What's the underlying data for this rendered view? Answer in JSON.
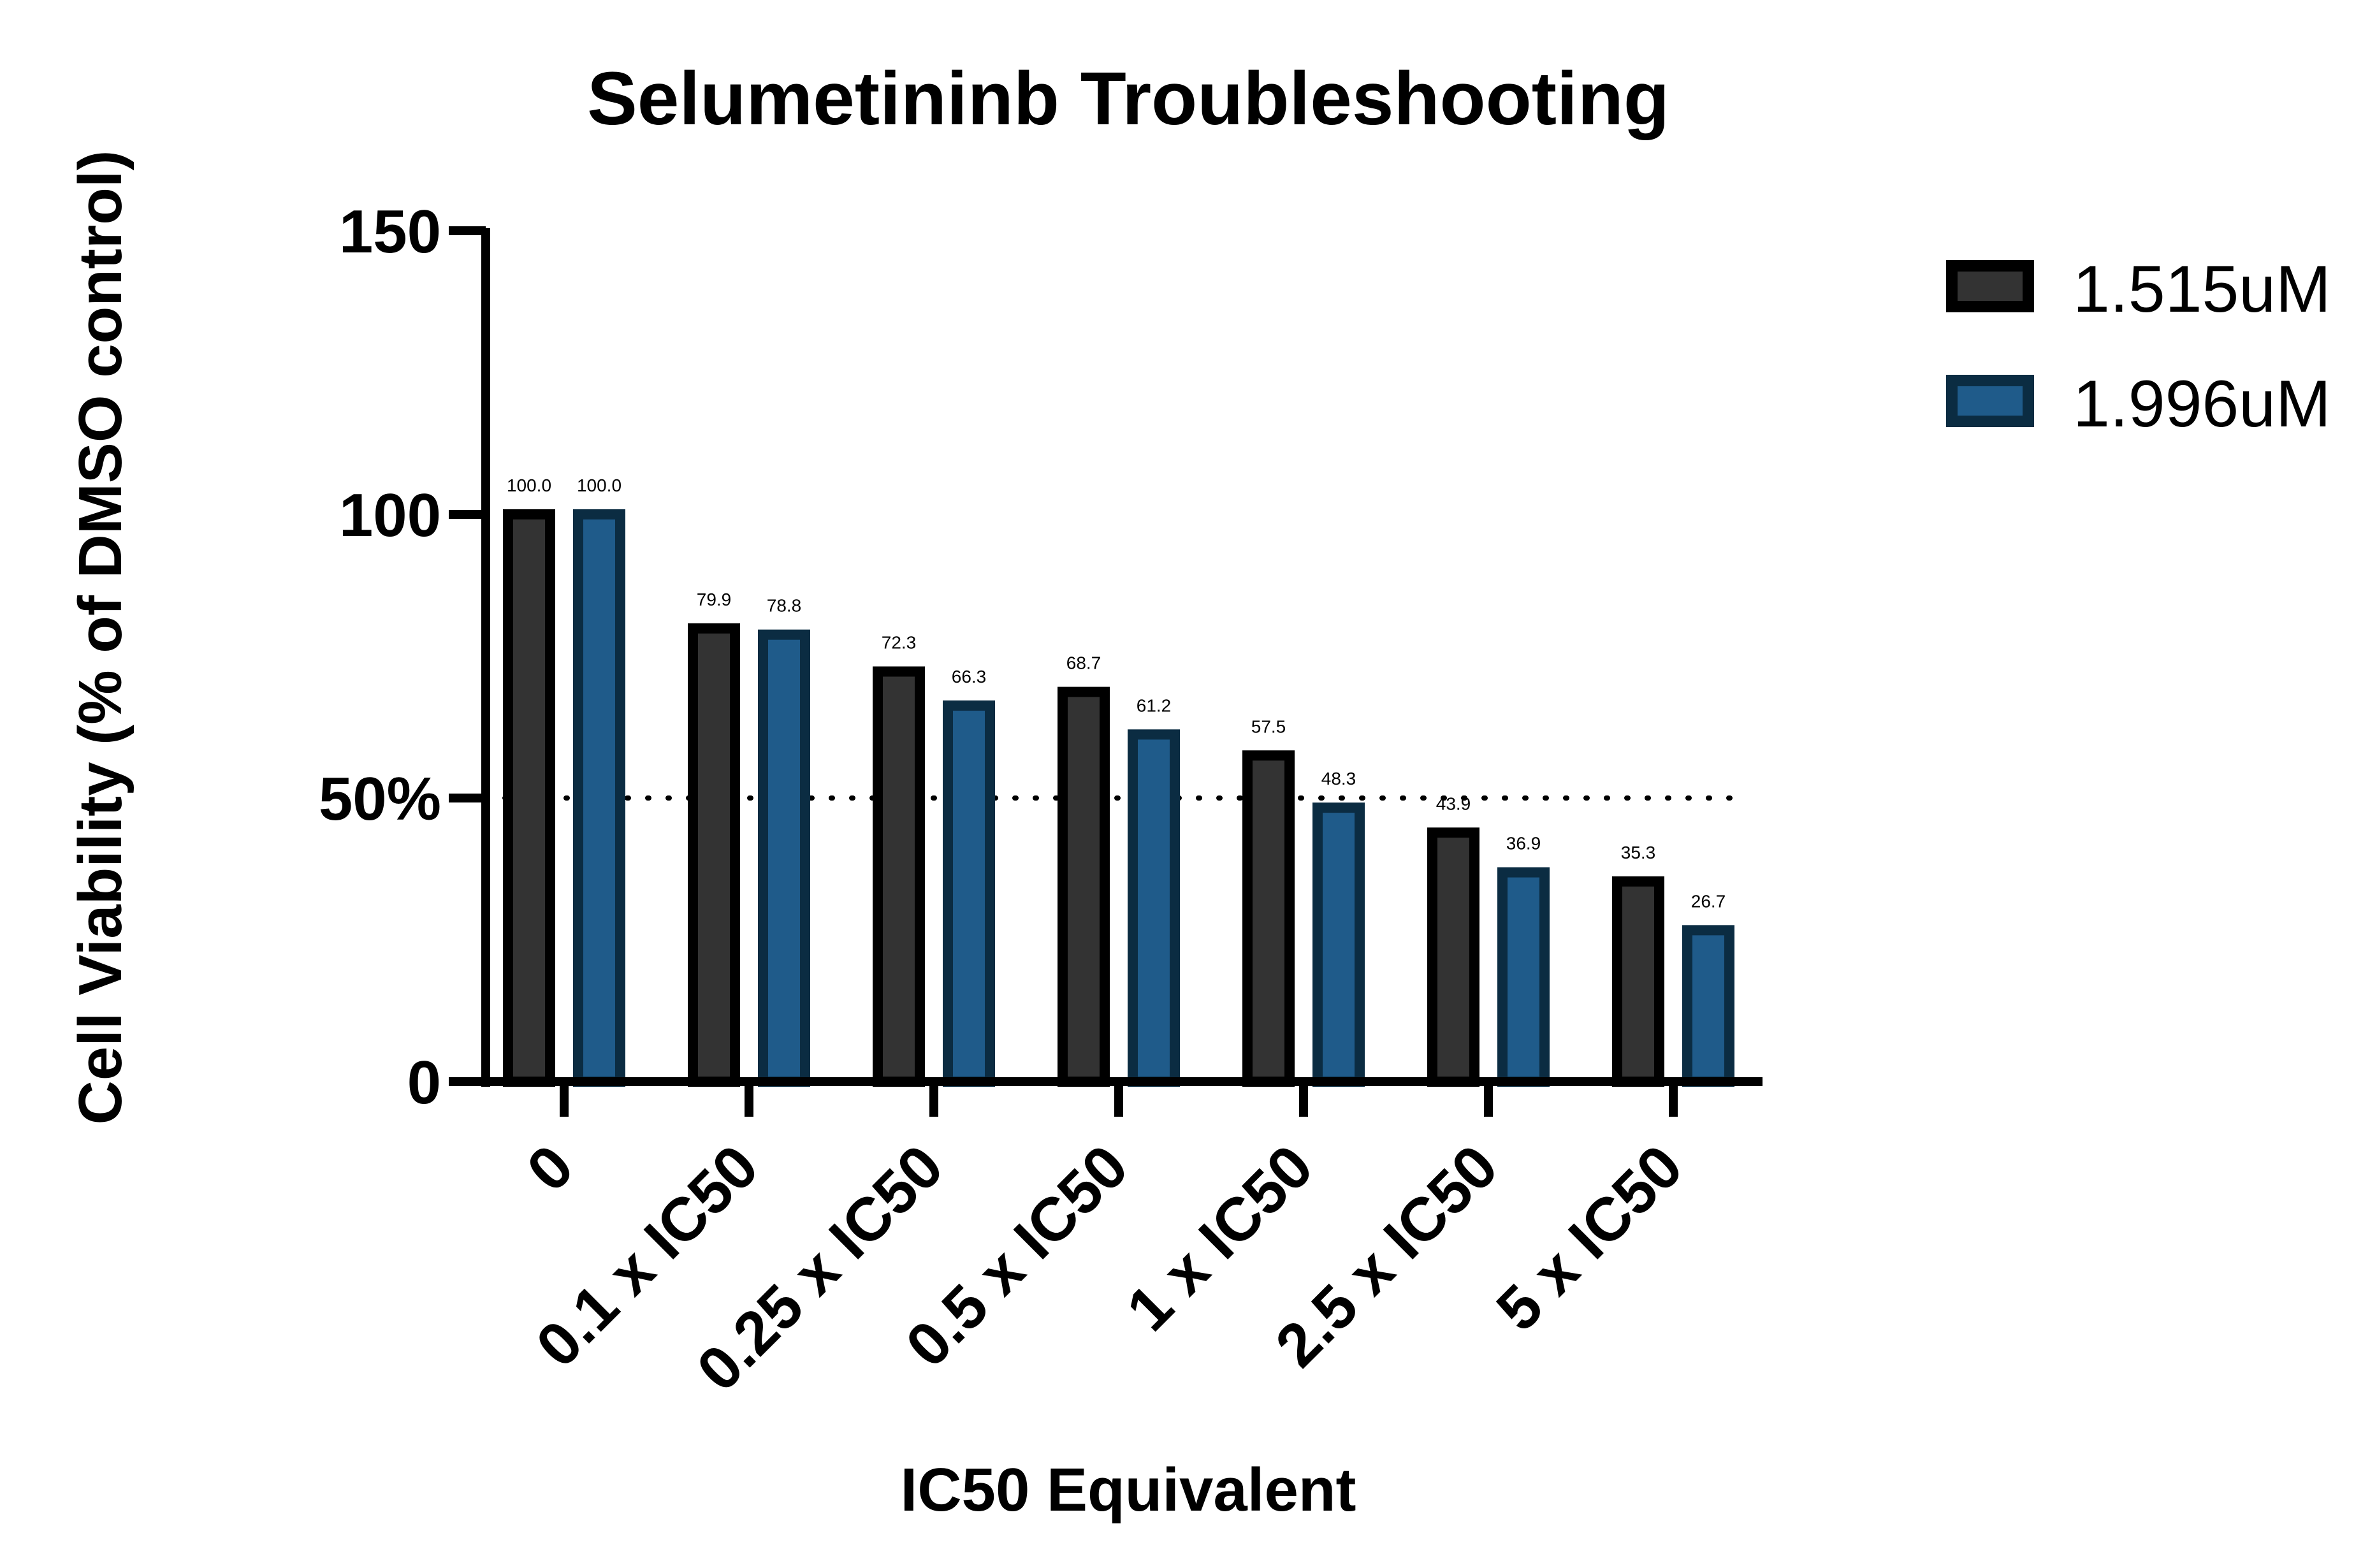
{
  "chart_data": {
    "type": "bar",
    "title": "Selumetininb  Troubleshooting",
    "xlabel": "IC50 Equivalent",
    "ylabel": "Cell Viability (% of DMSO control)",
    "ylim": [
      0,
      150
    ],
    "yticks": [
      {
        "value": 0,
        "label": "0"
      },
      {
        "value": 50,
        "label": "50%"
      },
      {
        "value": 100,
        "label": "100"
      },
      {
        "value": 150,
        "label": "150"
      }
    ],
    "reference_line": {
      "value": 50,
      "style": "dotted"
    },
    "categories": [
      "0",
      "0.1 x IC50",
      "0.25 x IC50",
      "0.5 x IC50",
      "1 x IC50",
      "2.5 x IC50",
      "5 x IC50"
    ],
    "series": [
      {
        "name": "1.515uM",
        "color": "#333333",
        "edge": "#000000",
        "values": [
          100.0,
          79.9,
          72.3,
          68.7,
          57.5,
          43.9,
          35.3
        ],
        "labels": [
          "100.0",
          "79.9",
          "72.3",
          "68.7",
          "57.5",
          "43.9",
          "35.3"
        ]
      },
      {
        "name": "1.996uM",
        "color": "#1f5b8a",
        "edge": "#0b2c42",
        "values": [
          100.0,
          78.8,
          66.3,
          61.2,
          48.3,
          36.9,
          26.7
        ],
        "labels": [
          "100.0",
          "78.8",
          "66.3",
          "61.2",
          "48.3",
          "36.9",
          "26.7"
        ]
      }
    ],
    "legend": "right",
    "grid": false
  }
}
